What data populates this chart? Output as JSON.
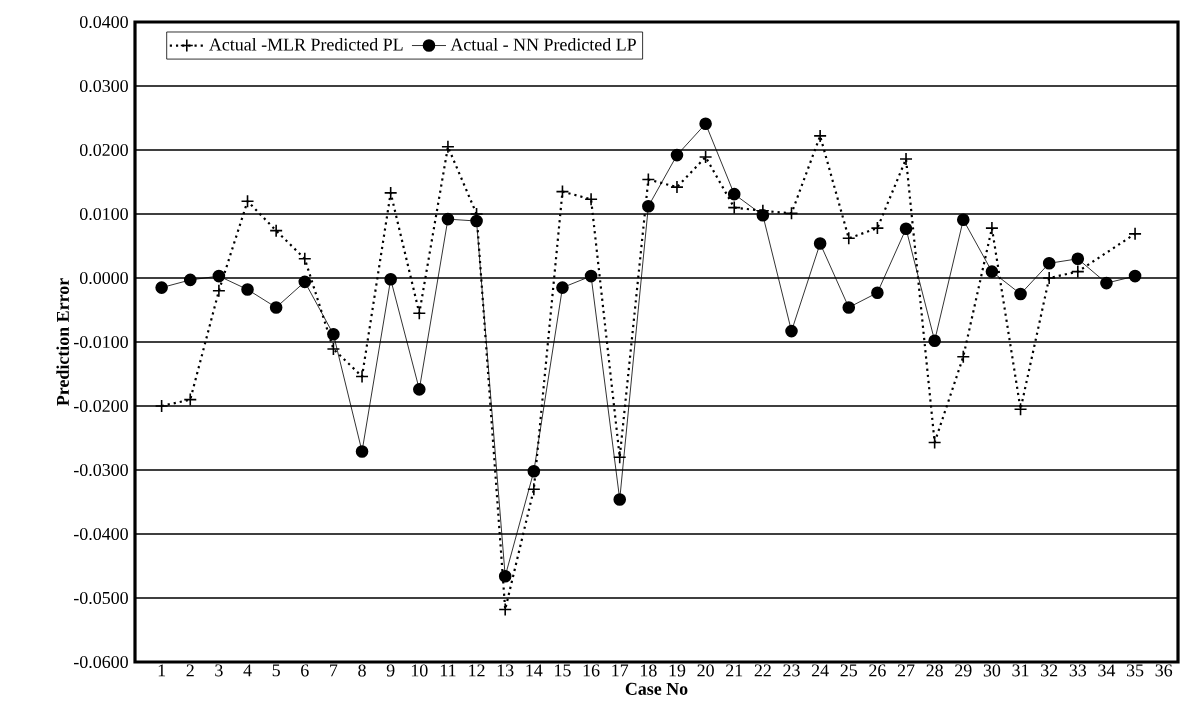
{
  "chart_data": {
    "type": "line",
    "xlabel": "Case No",
    "ylabel": "Prediction Error",
    "categories": [
      "1",
      "2",
      "3",
      "4",
      "5",
      "6",
      "7",
      "8",
      "9",
      "10",
      "11",
      "12",
      "13",
      "14",
      "15",
      "16",
      "17",
      "18",
      "19",
      "20",
      "21",
      "22",
      "23",
      "24",
      "25",
      "26",
      "27",
      "28",
      "29",
      "30",
      "31",
      "32",
      "33",
      "34",
      "35",
      "36"
    ],
    "series": [
      {
        "name": "Actual -MLR Predicted PL",
        "color": "#000000",
        "marker": "cross",
        "line_style": "dotted",
        "values": [
          -0.02,
          -0.019,
          -0.002,
          0.012,
          0.0074,
          0.003,
          -0.0111,
          -0.0154,
          0.0133,
          -0.0055,
          0.0205,
          0.01,
          -0.0518,
          -0.033,
          0.0135,
          0.0123,
          -0.028,
          0.0154,
          0.0142,
          0.0189,
          0.011,
          0.0105,
          0.0101,
          0.0222,
          0.0062,
          0.0078,
          0.0186,
          -0.0257,
          -0.0123,
          0.0078,
          -0.0205,
          0.0,
          0.001,
          null,
          0.0069,
          null
        ]
      },
      {
        "name": "Actual - NN Predicted LP",
        "color": "#000000",
        "marker": "circle",
        "line_style": "solid",
        "values": [
          -0.0015,
          -0.0003,
          0.0003,
          -0.0018,
          -0.0046,
          -0.0006,
          -0.0088,
          -0.0271,
          -0.0002,
          -0.0174,
          0.0092,
          0.0089,
          -0.0466,
          -0.0302,
          -0.0015,
          0.0003,
          -0.0346,
          0.0112,
          0.0192,
          0.0241,
          0.0131,
          0.0098,
          -0.0083,
          0.0054,
          -0.0046,
          -0.0023,
          0.0077,
          -0.0098,
          0.0091,
          0.001,
          -0.0025,
          0.0023,
          0.003,
          -0.0008,
          0.0003,
          null
        ]
      }
    ],
    "ylim": [
      -0.06,
      0.04
    ],
    "yticks": [
      {
        "value": -0.06,
        "label": "-0.0600"
      },
      {
        "value": -0.05,
        "label": "-0.0500"
      },
      {
        "value": -0.04,
        "label": "-0.0400"
      },
      {
        "value": -0.03,
        "label": "-0.0300"
      },
      {
        "value": -0.02,
        "label": "-0.0200"
      },
      {
        "value": -0.01,
        "label": "-0.0100"
      },
      {
        "value": 0.0,
        "label": "0.0000"
      },
      {
        "value": 0.01,
        "label": "0.0100"
      },
      {
        "value": 0.02,
        "label": "0.0200"
      },
      {
        "value": 0.03,
        "label": "0.0300"
      },
      {
        "value": 0.04,
        "label": "0.0400"
      }
    ],
    "grid": "y",
    "legend": "top left"
  }
}
